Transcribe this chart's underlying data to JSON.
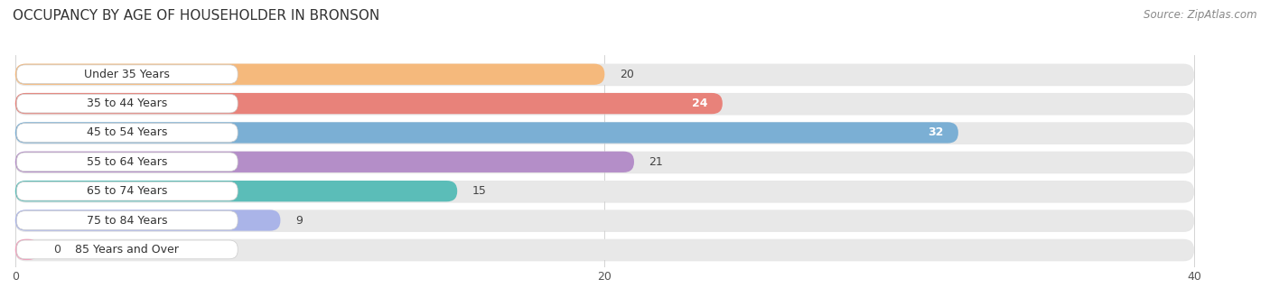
{
  "title": "OCCUPANCY BY AGE OF HOUSEHOLDER IN BRONSON",
  "source": "Source: ZipAtlas.com",
  "categories": [
    "Under 35 Years",
    "35 to 44 Years",
    "45 to 54 Years",
    "55 to 64 Years",
    "65 to 74 Years",
    "75 to 84 Years",
    "85 Years and Over"
  ],
  "values": [
    20,
    24,
    32,
    21,
    15,
    9,
    0
  ],
  "bar_colors": [
    "#F5B97C",
    "#E8827A",
    "#7BAfd4",
    "#B48EC8",
    "#5BBDB8",
    "#AAB4E8",
    "#F2A0BC"
  ],
  "xlim_max": 40,
  "xticks": [
    0,
    20,
    40
  ],
  "fig_bg": "#ffffff",
  "plot_bg": "#f7f7f7",
  "bar_bg_color": "#e8e8e8",
  "label_bg_color": "#ffffff",
  "title_fontsize": 11,
  "source_fontsize": 8.5,
  "label_fontsize": 9,
  "value_fontsize": 9,
  "bar_height": 0.72,
  "bar_spacing": 1.0
}
